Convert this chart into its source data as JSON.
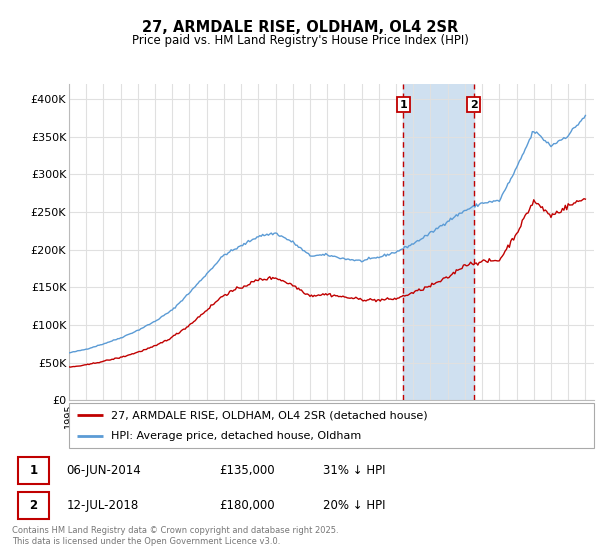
{
  "title": "27, ARMDALE RISE, OLDHAM, OL4 2SR",
  "subtitle": "Price paid vs. HM Land Registry's House Price Index (HPI)",
  "ytick_labels": [
    "£0",
    "£50K",
    "£100K",
    "£150K",
    "£200K",
    "£250K",
    "£300K",
    "£350K",
    "£400K"
  ],
  "yticks": [
    0,
    50000,
    100000,
    150000,
    200000,
    250000,
    300000,
    350000,
    400000
  ],
  "ylim": [
    0,
    420000
  ],
  "hpi_color": "#5b9bd5",
  "price_color": "#c00000",
  "sale1_date": "06-JUN-2014",
  "sale1_price": "£135,000",
  "sale1_hpi": "31% ↓ HPI",
  "sale2_date": "12-JUL-2018",
  "sale2_price": "£180,000",
  "sale2_hpi": "20% ↓ HPI",
  "legend_line1": "27, ARMDALE RISE, OLDHAM, OL4 2SR (detached house)",
  "legend_line2": "HPI: Average price, detached house, Oldham",
  "footer": "Contains HM Land Registry data © Crown copyright and database right 2025.\nThis data is licensed under the Open Government Licence v3.0.",
  "background_color": "#ffffff",
  "grid_color": "#e0e0e0",
  "shade_color": "#cfe0f0"
}
